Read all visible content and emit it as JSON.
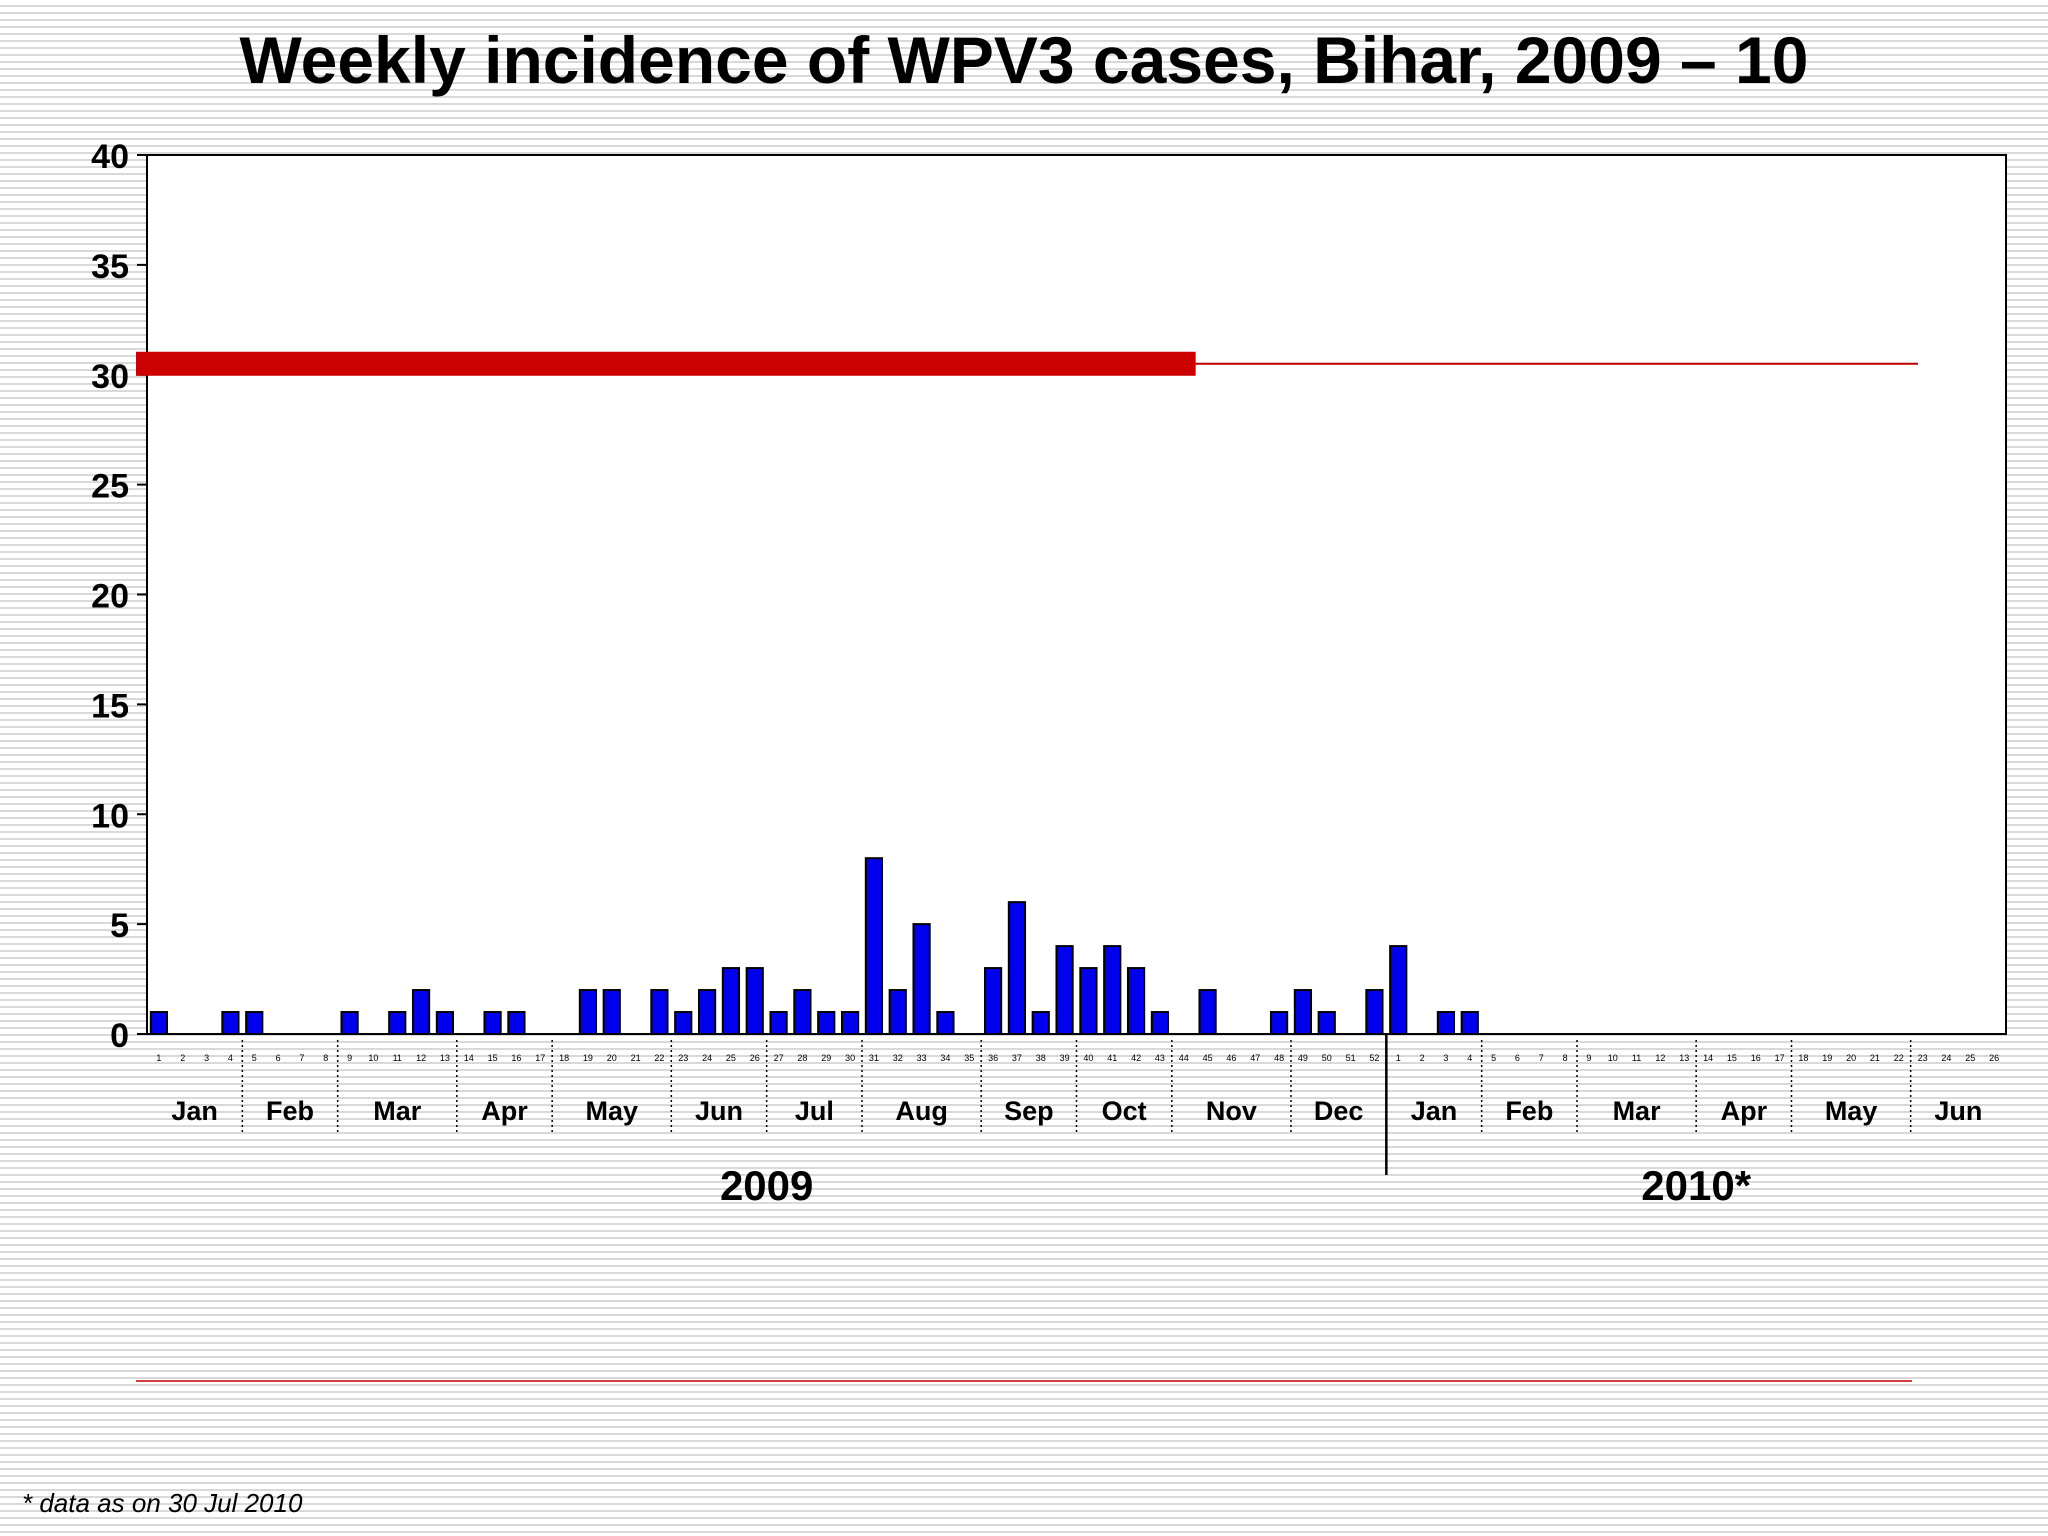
{
  "title": "Weekly incidence of WPV3 cases, Bihar, 2009 – 10",
  "footnote": "* data as on 30 Jul 2010",
  "colors": {
    "bar": "#0000ee",
    "bar_outline": "#000000",
    "threshold_thick": "#cc0000",
    "threshold_thin": "#c00000"
  },
  "chart_data": {
    "type": "bar",
    "title": "Weekly incidence of WPV3 cases, Bihar, 2009 – 10",
    "xlabel": "",
    "ylabel": "",
    "ylim": [
      0,
      40
    ],
    "y_ticks": [
      "0",
      "5",
      "10",
      "15",
      "20",
      "25",
      "30",
      "35",
      "40"
    ],
    "grid": false,
    "legend": "none",
    "years": [
      {
        "label": "2009",
        "weeks": 52
      },
      {
        "label": "2010*",
        "weeks": 26
      }
    ],
    "months": [
      {
        "label": "Jan",
        "weeks": 4
      },
      {
        "label": "Feb",
        "weeks": 4
      },
      {
        "label": "Mar",
        "weeks": 5
      },
      {
        "label": "Apr",
        "weeks": 4
      },
      {
        "label": "May",
        "weeks": 5
      },
      {
        "label": "Jun",
        "weeks": 4
      },
      {
        "label": "Jul",
        "weeks": 4
      },
      {
        "label": "Aug",
        "weeks": 5
      },
      {
        "label": "Sep",
        "weeks": 4
      },
      {
        "label": "Oct",
        "weeks": 4
      },
      {
        "label": "Nov",
        "weeks": 5
      },
      {
        "label": "Dec",
        "weeks": 4
      },
      {
        "label": "Jan",
        "weeks": 4
      },
      {
        "label": "Feb",
        "weeks": 4
      },
      {
        "label": "Mar",
        "weeks": 5
      },
      {
        "label": "Apr",
        "weeks": 4
      },
      {
        "label": "May",
        "weeks": 5
      },
      {
        "label": "Jun",
        "weeks": 4
      }
    ],
    "categories": [
      "1",
      "2",
      "3",
      "4",
      "5",
      "6",
      "7",
      "8",
      "9",
      "10",
      "11",
      "12",
      "13",
      "14",
      "15",
      "16",
      "17",
      "18",
      "19",
      "20",
      "21",
      "22",
      "23",
      "24",
      "25",
      "26",
      "27",
      "28",
      "29",
      "30",
      "31",
      "32",
      "33",
      "34",
      "35",
      "36",
      "37",
      "38",
      "39",
      "40",
      "41",
      "42",
      "43",
      "44",
      "45",
      "46",
      "47",
      "48",
      "49",
      "50",
      "51",
      "52",
      "1",
      "2",
      "3",
      "4",
      "5",
      "6",
      "7",
      "8",
      "9",
      "10",
      "11",
      "12",
      "13",
      "14",
      "15",
      "16",
      "17",
      "18",
      "19",
      "20",
      "21",
      "22",
      "23",
      "24",
      "25",
      "26"
    ],
    "values": [
      1,
      0,
      0,
      1,
      1,
      0,
      0,
      0,
      1,
      0,
      1,
      2,
      1,
      0,
      1,
      1,
      0,
      0,
      2,
      2,
      0,
      2,
      1,
      2,
      3,
      3,
      1,
      2,
      1,
      1,
      8,
      2,
      5,
      1,
      0,
      3,
      6,
      1,
      4,
      3,
      4,
      3,
      1,
      0,
      2,
      0,
      0,
      1,
      2,
      1,
      0,
      2,
      4,
      0,
      1,
      1,
      0,
      0,
      0,
      0,
      0,
      0,
      0,
      0,
      0,
      0,
      0,
      0,
      0,
      0,
      0,
      0,
      0,
      0,
      0,
      0,
      0,
      0
    ],
    "threshold": {
      "value": 30.5,
      "thick_until_week": 44
    }
  }
}
